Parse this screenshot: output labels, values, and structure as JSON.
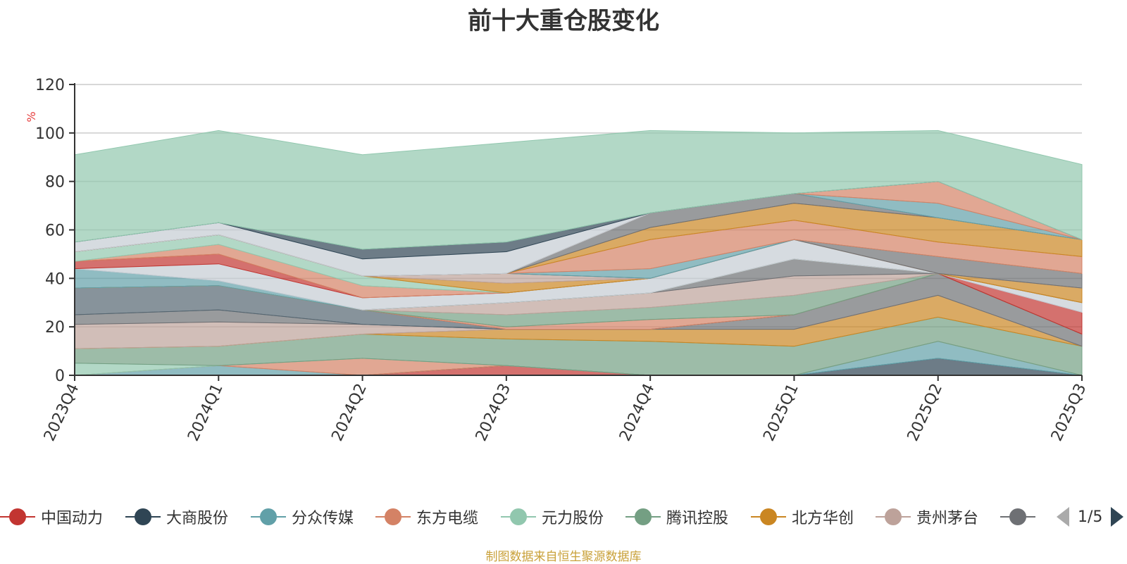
{
  "title": "前十大重仓股变化",
  "source_note": "制图数据来自恒生聚源数据库",
  "legend_page": "1/5",
  "legend": [
    {
      "name": "中国动力",
      "color": "#c23531"
    },
    {
      "name": "大商股份",
      "color": "#2f4554"
    },
    {
      "name": "分众传媒",
      "color": "#61a0a8"
    },
    {
      "name": "东方电缆",
      "color": "#d48265"
    },
    {
      "name": "元力股份",
      "color": "#91c7ae"
    },
    {
      "name": "腾讯控股",
      "color": "#749f83"
    },
    {
      "name": "北方华创",
      "color": "#ca8622"
    },
    {
      "name": "贵州茅台",
      "color": "#bda29a"
    },
    {
      "name": "",
      "color": "#6e7074"
    }
  ],
  "chart_data": {
    "type": "area",
    "stacked": true,
    "title": "前十大重仓股变化",
    "ylabel": "%",
    "ylim": [
      0,
      120
    ],
    "yticks": [
      0,
      20,
      40,
      60,
      80,
      100,
      120
    ],
    "categories": [
      "2023Q4",
      "2024Q1",
      "2024Q2",
      "2024Q3",
      "2024Q4",
      "2025Q1",
      "2025Q2",
      "2025Q3"
    ],
    "series": [
      {
        "color": "#c23531",
        "values": [
          0,
          0,
          0,
          4,
          0,
          0,
          0,
          0
        ]
      },
      {
        "color": "#2f4554",
        "values": [
          0,
          0,
          0,
          0,
          0,
          0,
          7,
          0
        ]
      },
      {
        "color": "#61a0a8",
        "values": [
          0,
          4,
          0,
          0,
          0,
          0,
          7,
          0
        ]
      },
      {
        "color": "#d48265",
        "values": [
          0,
          0,
          7,
          0,
          0,
          0,
          0,
          0
        ]
      },
      {
        "color": "#91c7ae",
        "values": [
          5,
          0,
          0,
          0,
          0,
          0,
          0,
          0
        ]
      },
      {
        "color": "#749f83",
        "values": [
          6,
          8,
          10,
          11,
          14,
          12,
          10,
          12
        ]
      },
      {
        "color": "#ca8622",
        "values": [
          0,
          0,
          0,
          4,
          5,
          7,
          9,
          0
        ]
      },
      {
        "color": "#bda29a",
        "values": [
          10,
          10,
          4,
          0,
          0,
          0,
          0,
          0
        ]
      },
      {
        "color": "#6e7074",
        "values": [
          4,
          5,
          0,
          0,
          0,
          6,
          9,
          5
        ]
      },
      {
        "color": "#546570",
        "values": [
          11,
          10,
          6,
          0,
          0,
          0,
          0,
          0
        ]
      },
      {
        "color": "#d48265",
        "values": [
          0,
          0,
          0,
          1,
          4,
          0,
          0,
          0
        ]
      },
      {
        "color": "#749f83",
        "values": [
          0,
          0,
          0,
          5,
          5,
          8,
          0,
          0
        ]
      },
      {
        "color": "#bda29a",
        "values": [
          0,
          0,
          0,
          5,
          6,
          8,
          0,
          0
        ]
      },
      {
        "color": "#6e7074",
        "values": [
          0,
          0,
          0,
          0,
          0,
          7,
          0,
          0
        ]
      },
      {
        "color": "#c23531",
        "values": [
          0,
          0,
          0,
          0,
          0,
          0,
          0,
          9
        ]
      },
      {
        "color": "#c4ccd3",
        "values": [
          0,
          0,
          0,
          0,
          0,
          0,
          0,
          4
        ]
      },
      {
        "color": "#ca8622",
        "values": [
          0,
          0,
          0,
          0,
          0,
          0,
          0,
          0
        ]
      },
      {
        "color": "#61a0a8",
        "values": [
          8,
          2,
          0,
          0,
          0,
          0,
          0,
          0
        ]
      },
      {
        "color": "#c4ccd3",
        "values": [
          0,
          7,
          5,
          4,
          6,
          8,
          0,
          0
        ]
      },
      {
        "color": "#c23531",
        "values": [
          3,
          4,
          0,
          0,
          0,
          0,
          0,
          0
        ]
      },
      {
        "color": "#d48265",
        "values": [
          0,
          4,
          5,
          0,
          0,
          0,
          0,
          0
        ]
      },
      {
        "color": "#91c7ae",
        "values": [
          4,
          4,
          4,
          0,
          0,
          0,
          0,
          0
        ]
      },
      {
        "color": "#ca8622",
        "values": [
          0,
          0,
          0,
          4,
          0,
          0,
          0,
          6
        ]
      },
      {
        "color": "#bda29a",
        "values": [
          0,
          0,
          0,
          4,
          0,
          0,
          0,
          0
        ]
      },
      {
        "color": "#6e7074",
        "values": [
          0,
          0,
          0,
          0,
          0,
          0,
          7,
          6
        ]
      },
      {
        "color": "#61a0a8",
        "values": [
          0,
          0,
          0,
          0,
          4,
          0,
          0,
          0
        ]
      },
      {
        "color": "#d48265",
        "values": [
          0,
          0,
          0,
          0,
          12,
          8,
          6,
          7
        ]
      },
      {
        "color": "#ca8622",
        "values": [
          0,
          0,
          0,
          0,
          5,
          7,
          10,
          7
        ]
      },
      {
        "color": "#6e7074",
        "values": [
          0,
          0,
          0,
          0,
          6,
          4,
          0,
          0
        ]
      },
      {
        "color": "#61a0a8",
        "values": [
          0,
          0,
          0,
          0,
          0,
          0,
          6,
          0
        ]
      },
      {
        "color": "#d48265",
        "values": [
          0,
          0,
          0,
          0,
          0,
          0,
          9,
          0
        ]
      },
      {
        "color": "#c4ccd3",
        "values": [
          4,
          5,
          7,
          9,
          0,
          0,
          0,
          0
        ]
      },
      {
        "color": "#2f4554",
        "values": [
          0,
          0,
          4,
          4,
          0,
          0,
          0,
          0
        ]
      },
      {
        "color": "#91c7ae",
        "values": [
          36,
          38,
          39,
          41,
          34,
          25,
          21,
          31
        ]
      }
    ]
  }
}
